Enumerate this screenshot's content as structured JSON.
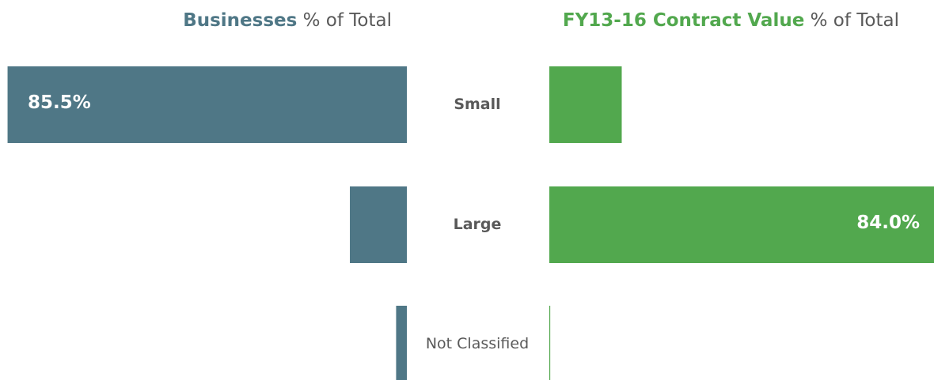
{
  "chart_data": [
    {
      "type": "bar",
      "orientation": "horizontal",
      "direction": "left",
      "title_highlight": "Businesses",
      "title_suffix": "% of Total",
      "categories": [
        "Small",
        "Large",
        "Not Classified"
      ],
      "values": [
        85.5,
        12.2,
        2.3
      ],
      "value_labels": [
        "85.5%",
        null,
        null
      ],
      "color": "#4f7786",
      "xlim": [
        0,
        100
      ]
    },
    {
      "type": "bar",
      "orientation": "horizontal",
      "direction": "right",
      "title_highlight": "FY13-16 Contract Value",
      "title_suffix": "% of Total",
      "values": [
        15.8,
        84.0,
        0.2
      ],
      "value_labels": [
        null,
        "84.0%",
        null
      ],
      "color": "#52a84e",
      "xlim": [
        0,
        100
      ]
    }
  ]
}
